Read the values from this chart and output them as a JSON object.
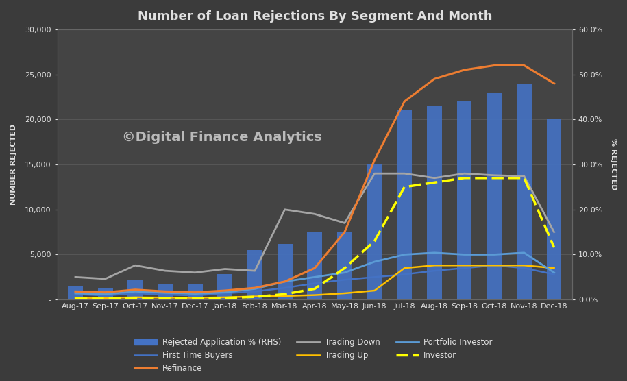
{
  "title": "Number of Loan Rejections By Segment And Month",
  "ylabel_left": "NUMBER REJECTED",
  "ylabel_right": "% REJECTED",
  "watermark": "©Digital Finance Analytics",
  "background_color": "#3b3b3b",
  "plot_bg_color": "#444444",
  "text_color": "#e0e0e0",
  "grid_color": "#5a5a5a",
  "categories": [
    "Aug-17",
    "Sep-17",
    "Oct-17",
    "Nov-17",
    "Dec-17",
    "Jan-18",
    "Feb-18",
    "Mar-18",
    "Apr-18",
    "May-18",
    "Jun-18",
    "Jul-18",
    "Aug-18",
    "Sep-18",
    "Oct-18",
    "Nov-18",
    "Dec-18"
  ],
  "bar_values": [
    1500,
    1200,
    2200,
    1800,
    1700,
    2800,
    5500,
    6200,
    7500,
    7500,
    15000,
    21000,
    21500,
    22000,
    23000,
    24000,
    20000
  ],
  "bar_color": "#4472c4",
  "first_time_buyers": [
    600,
    450,
    700,
    550,
    450,
    700,
    900,
    1300,
    1800,
    2200,
    2500,
    2800,
    3200,
    3500,
    3800,
    3500,
    2800
  ],
  "first_time_buyers_color": "#4472c4",
  "refinance": [
    900,
    800,
    1100,
    900,
    800,
    1000,
    1300,
    2000,
    3500,
    7500,
    15500,
    22000,
    24500,
    25500,
    26000,
    26000,
    24000
  ],
  "refinance_color": "#ed7d31",
  "trading_down": [
    2500,
    2300,
    3800,
    3200,
    3000,
    3400,
    3200,
    10000,
    9500,
    8500,
    14000,
    14000,
    13500,
    14000,
    13800,
    13700,
    7500
  ],
  "trading_down_color": "#a5a5a5",
  "trading_up": [
    200,
    180,
    250,
    220,
    200,
    250,
    350,
    400,
    500,
    700,
    1000,
    3500,
    3800,
    3800,
    3800,
    3800,
    3500
  ],
  "trading_up_color": "#ffc000",
  "portfolio_investor": [
    700,
    600,
    900,
    750,
    650,
    800,
    1200,
    2000,
    2500,
    3000,
    4200,
    5000,
    5200,
    5000,
    5000,
    5200,
    3000
  ],
  "portfolio_investor_color": "#5b9bd5",
  "investor": [
    100,
    100,
    150,
    120,
    120,
    180,
    300,
    600,
    1200,
    3500,
    6500,
    12500,
    13000,
    13500,
    13500,
    13500,
    5800
  ],
  "investor_color": "#ffff00",
  "ylim_left": [
    0,
    30000
  ],
  "ylim_right": [
    0,
    0.6
  ],
  "yticks_left": [
    0,
    5000,
    10000,
    15000,
    20000,
    25000,
    30000
  ],
  "yticks_right": [
    0.0,
    0.1,
    0.2,
    0.3,
    0.4,
    0.5,
    0.6
  ],
  "title_fontsize": 13,
  "axis_label_fontsize": 8,
  "tick_fontsize": 8
}
